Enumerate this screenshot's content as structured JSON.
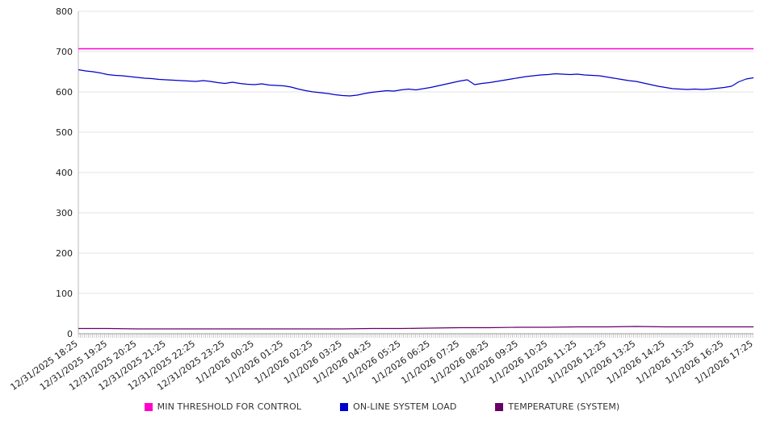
{
  "chart_data": {
    "type": "line",
    "title": "",
    "xlabel": "",
    "ylabel": "",
    "ylim": [
      0,
      800
    ],
    "y_ticks": [
      0,
      100,
      200,
      300,
      400,
      500,
      600,
      700,
      800
    ],
    "grid": true,
    "legend_position": "bottom",
    "x_labels": [
      "12/31/2025 18:25",
      "12/31/2025 19:25",
      "12/31/2025 20:25",
      "12/31/2025 21:25",
      "12/31/2025 22:25",
      "12/31/2025 23:25",
      "1/1/2026 00:25",
      "1/1/2026 01:25",
      "1/1/2026 02:25",
      "1/1/2026 03:25",
      "1/1/2026 04:25",
      "1/1/2026 05:25",
      "1/1/2026 06:25",
      "1/1/2026 07:25",
      "1/1/2026 08:25",
      "1/1/2026 09:25",
      "1/1/2026 10:25",
      "1/1/2026 11:25",
      "1/1/2026 12:25",
      "1/1/2026 13:25",
      "1/1/2026 14:25",
      "1/1/2026 15:25",
      "1/1/2026 16:25",
      "1/1/2026 17:25"
    ],
    "series": [
      {
        "name": "MIN THRESHOLD FOR CONTROL",
        "color": "#ff00cc",
        "x_start": 0,
        "x_step": 23,
        "values": [
          707,
          707
        ]
      },
      {
        "name": "ON-LINE SYSTEM LOAD",
        "color": "#0000cc",
        "x_start": 0,
        "x_step": 0.25,
        "values": [
          655,
          652,
          650,
          647,
          643,
          641,
          640,
          638,
          636,
          634,
          633,
          631,
          630,
          629,
          628,
          627,
          626,
          628,
          626,
          623,
          621,
          624,
          621,
          619,
          618,
          620,
          617,
          616,
          615,
          612,
          607,
          603,
          600,
          598,
          596,
          593,
          591,
          590,
          592,
          596,
          599,
          601,
          603,
          602,
          605,
          607,
          605,
          608,
          611,
          615,
          619,
          623,
          627,
          630,
          618,
          621,
          623,
          626,
          629,
          632,
          635,
          638,
          640,
          642,
          643,
          645,
          644,
          643,
          644,
          642,
          641,
          640,
          637,
          634,
          631,
          628,
          626,
          622,
          618,
          614,
          611,
          608,
          607,
          606,
          607,
          606,
          607,
          609,
          611,
          614,
          625,
          632,
          635
        ]
      },
      {
        "name": "TEMPERATURE (SYSTEM)",
        "color": "#660066",
        "x_start": 0,
        "x_step": 1,
        "values": [
          13,
          13,
          12,
          12,
          12,
          12,
          12,
          12,
          12,
          12,
          13,
          13,
          14,
          15,
          15,
          16,
          16,
          17,
          17,
          18,
          17,
          17,
          17,
          17
        ]
      }
    ]
  }
}
